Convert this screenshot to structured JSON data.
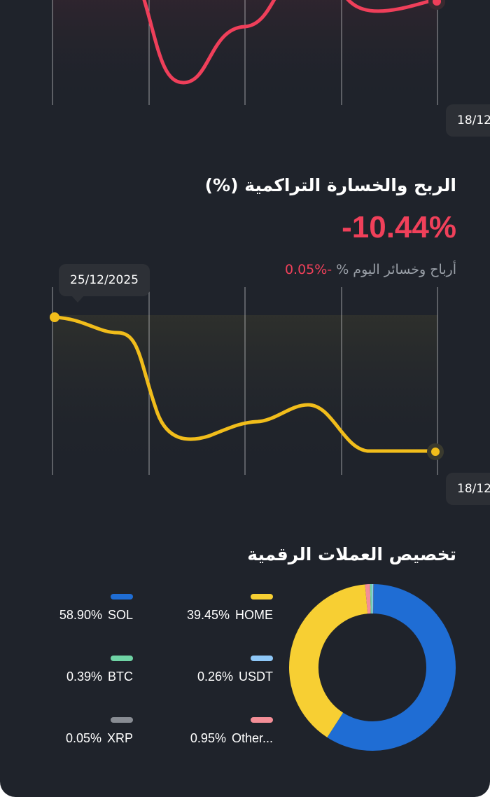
{
  "top_chart": {
    "line_color": "#ef3f5a",
    "date_label": "18/12"
  },
  "cumulative": {
    "title": "الربح والخسارة التراكمية (%)",
    "value": "-10.44%",
    "today_label": "أرباح وخسائر اليوم %",
    "today_value": "-%0.05",
    "tooltip_date": "25/12/2025",
    "date_label": "18/12",
    "line_color": "#f1bd1b"
  },
  "allocation": {
    "title": "تخصيص العملات الرقمية",
    "items": [
      {
        "name": "HOME",
        "percent": "39.45%",
        "color": "#f7cf33"
      },
      {
        "name": "SOL",
        "percent": "58.90%",
        "color": "#1f6dd4"
      },
      {
        "name": "USDT",
        "percent": "0.26%",
        "color": "#8ec7f7"
      },
      {
        "name": "BTC",
        "percent": "0.39%",
        "color": "#6fd3a5"
      },
      {
        "name": "Other...",
        "percent": "0.95%",
        "color": "#f38e97"
      },
      {
        "name": "XRP",
        "percent": "0.05%",
        "color": "#888c93"
      }
    ],
    "chart_data": {
      "type": "pie",
      "categories": [
        "SOL",
        "HOME",
        "Other...",
        "BTC",
        "USDT",
        "XRP"
      ],
      "values": [
        58.9,
        39.45,
        0.95,
        0.39,
        0.26,
        0.05
      ]
    }
  }
}
